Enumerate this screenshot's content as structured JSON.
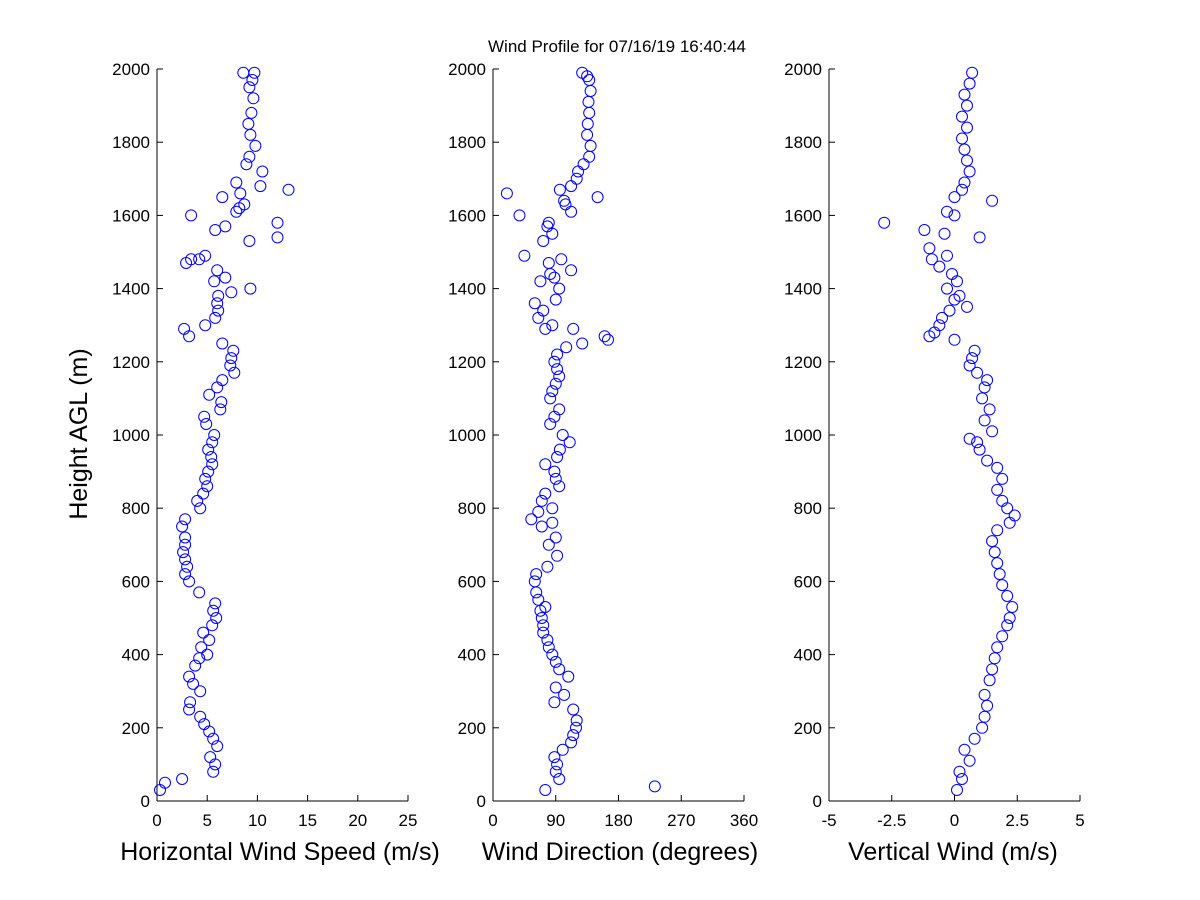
{
  "chart_data": {
    "type": "scatter",
    "title": "Wind Profile for  07/16/19 16:40:44",
    "ylabel": "Height AGL (m)",
    "ylim": [
      0,
      2000
    ],
    "yticks": [
      0,
      200,
      400,
      600,
      800,
      1000,
      1200,
      1400,
      1600,
      1800,
      2000
    ],
    "ytick_labels": [
      "0",
      "200",
      "400",
      "600",
      "800",
      "1000",
      "1200",
      "1400",
      "1600",
      "1800",
      "2000"
    ],
    "marker_color": "#0000ff",
    "panels": [
      {
        "xlabel": "Horizontal Wind Speed (m/s)",
        "xlim": [
          0,
          25
        ],
        "xticks": [
          0,
          5,
          10,
          15,
          20,
          25
        ],
        "xtick_labels": [
          "0",
          "5",
          "10",
          "15",
          "20",
          "25"
        ],
        "points": [
          [
            0.3,
            30
          ],
          [
            0.8,
            50
          ],
          [
            2.5,
            60
          ],
          [
            5.6,
            80
          ],
          [
            5.8,
            100
          ],
          [
            5.3,
            120
          ],
          [
            6,
            150
          ],
          [
            5.6,
            170
          ],
          [
            5.2,
            190
          ],
          [
            4.7,
            210
          ],
          [
            4.3,
            230
          ],
          [
            3.2,
            250
          ],
          [
            3.3,
            270
          ],
          [
            4.3,
            300
          ],
          [
            3.6,
            320
          ],
          [
            3.2,
            340
          ],
          [
            3.8,
            370
          ],
          [
            4.2,
            390
          ],
          [
            5,
            400
          ],
          [
            4.4,
            420
          ],
          [
            5.2,
            440
          ],
          [
            4.6,
            460
          ],
          [
            5.5,
            480
          ],
          [
            5.9,
            500
          ],
          [
            5.6,
            520
          ],
          [
            5.8,
            540
          ],
          [
            4.2,
            570
          ],
          [
            3.2,
            600
          ],
          [
            2.8,
            620
          ],
          [
            3,
            640
          ],
          [
            2.8,
            660
          ],
          [
            2.6,
            680
          ],
          [
            2.8,
            700
          ],
          [
            2.8,
            720
          ],
          [
            2.5,
            750
          ],
          [
            2.8,
            770
          ],
          [
            4.3,
            800
          ],
          [
            4,
            820
          ],
          [
            4.6,
            840
          ],
          [
            5,
            860
          ],
          [
            4.8,
            880
          ],
          [
            5.1,
            900
          ],
          [
            5.5,
            920
          ],
          [
            5.4,
            940
          ],
          [
            5.1,
            960
          ],
          [
            5.5,
            980
          ],
          [
            5.7,
            1000
          ],
          [
            4.9,
            1030
          ],
          [
            4.7,
            1050
          ],
          [
            6.3,
            1070
          ],
          [
            6.4,
            1090
          ],
          [
            5.2,
            1110
          ],
          [
            6,
            1130
          ],
          [
            6.5,
            1150
          ],
          [
            7.7,
            1170
          ],
          [
            7.3,
            1190
          ],
          [
            7.4,
            1210
          ],
          [
            7.6,
            1230
          ],
          [
            6.5,
            1250
          ],
          [
            3.2,
            1270
          ],
          [
            2.7,
            1290
          ],
          [
            4.8,
            1300
          ],
          [
            5.8,
            1320
          ],
          [
            6.1,
            1340
          ],
          [
            6,
            1360
          ],
          [
            6.1,
            1380
          ],
          [
            7.4,
            1390
          ],
          [
            9.3,
            1400
          ],
          [
            5.7,
            1420
          ],
          [
            6.8,
            1430
          ],
          [
            6,
            1450
          ],
          [
            3.4,
            1480
          ],
          [
            4.2,
            1480
          ],
          [
            4.8,
            1490
          ],
          [
            2.9,
            1470
          ],
          [
            9.2,
            1530
          ],
          [
            12,
            1540
          ],
          [
            5.8,
            1560
          ],
          [
            6.8,
            1570
          ],
          [
            12,
            1580
          ],
          [
            3.4,
            1600
          ],
          [
            7.9,
            1610
          ],
          [
            8.2,
            1620
          ],
          [
            8.7,
            1630
          ],
          [
            6.5,
            1650
          ],
          [
            8.3,
            1660
          ],
          [
            13.1,
            1670
          ],
          [
            10.3,
            1680
          ],
          [
            7.9,
            1690
          ],
          [
            10.5,
            1720
          ],
          [
            8.9,
            1740
          ],
          [
            9.2,
            1760
          ],
          [
            9.8,
            1790
          ],
          [
            9.3,
            1820
          ],
          [
            9.1,
            1850
          ],
          [
            9.4,
            1880
          ],
          [
            9.6,
            1920
          ],
          [
            9.2,
            1950
          ],
          [
            9.5,
            1970
          ],
          [
            9.7,
            1990
          ],
          [
            8.6,
            1990
          ]
        ]
      },
      {
        "xlabel": "Wind Direction (degrees)",
        "xlim": [
          0,
          360
        ],
        "xticks": [
          0,
          90,
          180,
          270,
          360
        ],
        "xtick_labels": [
          "0",
          "90",
          "180",
          "270",
          "360"
        ],
        "points": [
          [
            75,
            30
          ],
          [
            232,
            40
          ],
          [
            95,
            60
          ],
          [
            90,
            80
          ],
          [
            92,
            100
          ],
          [
            88,
            120
          ],
          [
            100,
            140
          ],
          [
            112,
            160
          ],
          [
            115,
            180
          ],
          [
            119,
            200
          ],
          [
            120,
            220
          ],
          [
            115,
            250
          ],
          [
            88,
            270
          ],
          [
            102,
            290
          ],
          [
            90,
            310
          ],
          [
            108,
            340
          ],
          [
            95,
            360
          ],
          [
            90,
            380
          ],
          [
            85,
            400
          ],
          [
            80,
            420
          ],
          [
            78,
            440
          ],
          [
            72,
            460
          ],
          [
            72,
            480
          ],
          [
            70,
            500
          ],
          [
            68,
            520
          ],
          [
            75,
            530
          ],
          [
            65,
            550
          ],
          [
            62,
            570
          ],
          [
            60,
            600
          ],
          [
            62,
            620
          ],
          [
            78,
            640
          ],
          [
            92,
            670
          ],
          [
            80,
            700
          ],
          [
            90,
            720
          ],
          [
            70,
            750
          ],
          [
            85,
            760
          ],
          [
            55,
            770
          ],
          [
            65,
            790
          ],
          [
            85,
            800
          ],
          [
            70,
            820
          ],
          [
            75,
            840
          ],
          [
            95,
            860
          ],
          [
            90,
            880
          ],
          [
            88,
            900
          ],
          [
            75,
            920
          ],
          [
            92,
            940
          ],
          [
            96,
            960
          ],
          [
            110,
            980
          ],
          [
            100,
            1000
          ],
          [
            82,
            1030
          ],
          [
            88,
            1050
          ],
          [
            95,
            1070
          ],
          [
            82,
            1100
          ],
          [
            85,
            1120
          ],
          [
            90,
            1140
          ],
          [
            95,
            1160
          ],
          [
            92,
            1180
          ],
          [
            88,
            1200
          ],
          [
            92,
            1220
          ],
          [
            105,
            1240
          ],
          [
            128,
            1250
          ],
          [
            165,
            1260
          ],
          [
            160,
            1270
          ],
          [
            75,
            1290
          ],
          [
            115,
            1290
          ],
          [
            85,
            1300
          ],
          [
            65,
            1320
          ],
          [
            72,
            1340
          ],
          [
            60,
            1360
          ],
          [
            90,
            1370
          ],
          [
            95,
            1400
          ],
          [
            68,
            1420
          ],
          [
            88,
            1430
          ],
          [
            82,
            1440
          ],
          [
            112,
            1450
          ],
          [
            80,
            1470
          ],
          [
            98,
            1480
          ],
          [
            45,
            1490
          ],
          [
            72,
            1530
          ],
          [
            85,
            1550
          ],
          [
            78,
            1570
          ],
          [
            80,
            1580
          ],
          [
            38,
            1600
          ],
          [
            112,
            1610
          ],
          [
            104,
            1630
          ],
          [
            102,
            1640
          ],
          [
            150,
            1650
          ],
          [
            20,
            1660
          ],
          [
            96,
            1670
          ],
          [
            112,
            1680
          ],
          [
            120,
            1700
          ],
          [
            122,
            1720
          ],
          [
            130,
            1740
          ],
          [
            138,
            1760
          ],
          [
            140,
            1790
          ],
          [
            135,
            1820
          ],
          [
            136,
            1850
          ],
          [
            138,
            1880
          ],
          [
            137,
            1910
          ],
          [
            140,
            1940
          ],
          [
            138,
            1970
          ],
          [
            128,
            1990
          ],
          [
            135,
            1980
          ]
        ]
      },
      {
        "xlabel": "Vertical Wind (m/s)",
        "xlim": [
          -5,
          5
        ],
        "xticks": [
          -5,
          -2.5,
          0,
          2.5,
          5
        ],
        "xtick_labels": [
          "-5",
          "-2.5",
          "0",
          "2.5",
          "5"
        ],
        "points": [
          [
            0.1,
            30
          ],
          [
            0.3,
            60
          ],
          [
            0.2,
            80
          ],
          [
            0.6,
            110
          ],
          [
            0.4,
            140
          ],
          [
            0.8,
            170
          ],
          [
            1.1,
            200
          ],
          [
            1.2,
            230
          ],
          [
            1.3,
            260
          ],
          [
            1.2,
            290
          ],
          [
            1.4,
            330
          ],
          [
            1.5,
            360
          ],
          [
            1.6,
            390
          ],
          [
            1.7,
            420
          ],
          [
            1.9,
            450
          ],
          [
            2.1,
            480
          ],
          [
            2.2,
            500
          ],
          [
            2.3,
            530
          ],
          [
            2.1,
            560
          ],
          [
            1.9,
            590
          ],
          [
            1.8,
            620
          ],
          [
            1.7,
            650
          ],
          [
            1.6,
            680
          ],
          [
            1.5,
            710
          ],
          [
            1.7,
            740
          ],
          [
            2.2,
            760
          ],
          [
            2.4,
            780
          ],
          [
            2.1,
            800
          ],
          [
            1.9,
            820
          ],
          [
            1.7,
            850
          ],
          [
            1.9,
            880
          ],
          [
            1.7,
            910
          ],
          [
            1.3,
            930
          ],
          [
            1,
            960
          ],
          [
            0.9,
            980
          ],
          [
            0.6,
            990
          ],
          [
            1.5,
            1010
          ],
          [
            1.2,
            1040
          ],
          [
            1.4,
            1070
          ],
          [
            1.1,
            1100
          ],
          [
            1.2,
            1130
          ],
          [
            1.3,
            1150
          ],
          [
            0.9,
            1170
          ],
          [
            0.6,
            1190
          ],
          [
            0.7,
            1210
          ],
          [
            0.8,
            1230
          ],
          [
            0,
            1260
          ],
          [
            -1,
            1270
          ],
          [
            -0.8,
            1280
          ],
          [
            -0.6,
            1300
          ],
          [
            -0.5,
            1320
          ],
          [
            -0.2,
            1340
          ],
          [
            0.5,
            1350
          ],
          [
            0,
            1370
          ],
          [
            0.2,
            1380
          ],
          [
            -0.3,
            1400
          ],
          [
            0.1,
            1420
          ],
          [
            -0.1,
            1440
          ],
          [
            -0.6,
            1460
          ],
          [
            -0.9,
            1480
          ],
          [
            -0.3,
            1490
          ],
          [
            -1,
            1510
          ],
          [
            -0.4,
            1550
          ],
          [
            1,
            1540
          ],
          [
            -1.2,
            1560
          ],
          [
            -2.8,
            1580
          ],
          [
            0,
            1600
          ],
          [
            -0.3,
            1610
          ],
          [
            1.5,
            1640
          ],
          [
            0,
            1650
          ],
          [
            0.3,
            1670
          ],
          [
            0.4,
            1690
          ],
          [
            0.6,
            1720
          ],
          [
            0.5,
            1750
          ],
          [
            0.4,
            1780
          ],
          [
            0.3,
            1810
          ],
          [
            0.5,
            1840
          ],
          [
            0.3,
            1870
          ],
          [
            0.5,
            1900
          ],
          [
            0.4,
            1930
          ],
          [
            0.6,
            1960
          ],
          [
            0.7,
            1990
          ]
        ]
      }
    ]
  }
}
